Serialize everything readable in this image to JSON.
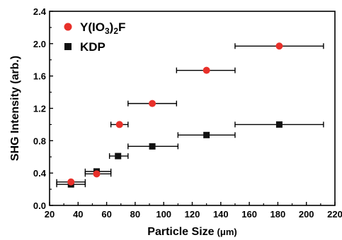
{
  "chart_data": {
    "type": "scatter",
    "xlabel_main": "Particle Size",
    "xlabel_unit": "(μm)",
    "ylabel": "SHG Intensity (arb.)",
    "xlim": [
      20,
      220
    ],
    "ylim": [
      0.0,
      2.4
    ],
    "x_ticks": [
      "20",
      "40",
      "60",
      "80",
      "100",
      "120",
      "140",
      "160",
      "180",
      "200",
      "220"
    ],
    "y_ticks": [
      "0.0",
      "0.4",
      "0.8",
      "1.2",
      "1.6",
      "2.0",
      "2.4"
    ],
    "grid": false,
    "legend_position": "top-left",
    "legend": {
      "s1": {
        "pre": "Y(IO",
        "sub1": "3",
        "mid": ")",
        "sub2": "2",
        "post": "F"
      },
      "s2": "KDP"
    },
    "series": [
      {
        "name": "Y(IO3)2F",
        "marker": "circle",
        "color": "#e8302a",
        "points": [
          {
            "x": 35,
            "y": 0.29,
            "xmin": 25,
            "xmax": 45
          },
          {
            "x": 53,
            "y": 0.39,
            "xmin": 45,
            "xmax": 63
          },
          {
            "x": 69,
            "y": 1.0,
            "xmin": 63,
            "xmax": 75
          },
          {
            "x": 92,
            "y": 1.26,
            "xmin": 75,
            "xmax": 109
          },
          {
            "x": 130,
            "y": 1.67,
            "xmin": 109,
            "xmax": 150
          },
          {
            "x": 181,
            "y": 1.97,
            "xmin": 150,
            "xmax": 212
          }
        ]
      },
      {
        "name": "KDP",
        "marker": "square",
        "color": "#111111",
        "points": [
          {
            "x": 35,
            "y": 0.26,
            "xmin": 25,
            "xmax": 45
          },
          {
            "x": 53,
            "y": 0.42,
            "xmin": 45,
            "xmax": 63
          },
          {
            "x": 68,
            "y": 0.61,
            "xmin": 62,
            "xmax": 75
          },
          {
            "x": 92,
            "y": 0.73,
            "xmin": 75,
            "xmax": 110
          },
          {
            "x": 130,
            "y": 0.87,
            "xmin": 110,
            "xmax": 150
          },
          {
            "x": 181,
            "y": 1.0,
            "xmin": 150,
            "xmax": 212
          }
        ]
      }
    ]
  }
}
